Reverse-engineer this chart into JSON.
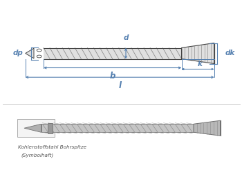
{
  "bg_color": "#ffffff",
  "line_color": "#5580b0",
  "dark_color": "#444444",
  "gray_fill": "#c8c8c8",
  "gray_light": "#e0e0e0",
  "gray_dark": "#888888",
  "caption_color": "#555555",
  "fig_w": 3.5,
  "fig_h": 2.5,
  "label_d": "d",
  "label_dp": "dp",
  "label_dk": "dk",
  "label_b": "b",
  "label_k": "k",
  "label_l": "l",
  "caption_line1": "Kohlenstoffstahl Bohrspitze",
  "caption_line2": "(Symbolhaft)"
}
